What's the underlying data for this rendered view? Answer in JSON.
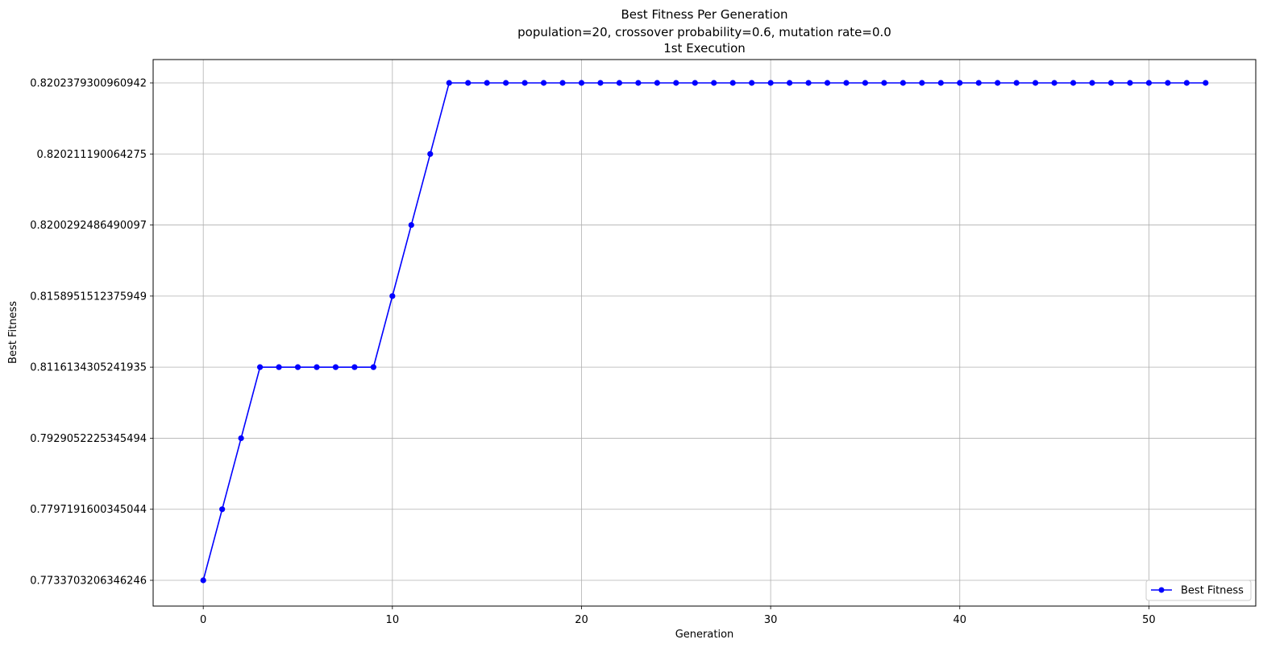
{
  "chart_data": {
    "type": "line",
    "title": "Best Fitness Per Generation",
    "subtitle": "population=20, crossover probability=0.6, mutation rate=0.0",
    "subtitle2": "1st Execution",
    "xlabel": "Generation",
    "ylabel": "Best Fitness",
    "x_ticks": [
      "0",
      "10",
      "20",
      "30",
      "40",
      "50"
    ],
    "xlim": [
      -2.65,
      55.65
    ],
    "y_categories": [
      "0.7733703206346246",
      "0.7797191600345044",
      "0.7929052225345494",
      "0.8116134305241935",
      "0.8158951512375949",
      "0.8200292486490097",
      "0.820211190064275",
      "0.8202379300960942"
    ],
    "grid": true,
    "legend_position": "bottom-right",
    "series": [
      {
        "name": "Best Fitness",
        "color": "#0000ff",
        "marker": "circle",
        "x": [
          0,
          1,
          2,
          3,
          4,
          5,
          6,
          7,
          8,
          9,
          10,
          11,
          12,
          13,
          14,
          15,
          16,
          17,
          18,
          19,
          20,
          21,
          22,
          23,
          24,
          25,
          26,
          27,
          28,
          29,
          30,
          31,
          32,
          33,
          34,
          35,
          36,
          37,
          38,
          39,
          40,
          41,
          42,
          43,
          44,
          45,
          46,
          47,
          48,
          49,
          50,
          51,
          52,
          53
        ],
        "y_level": [
          0,
          1,
          2,
          3,
          3,
          3,
          3,
          3,
          3,
          3,
          4,
          5,
          6,
          7,
          7,
          7,
          7,
          7,
          7,
          7,
          7,
          7,
          7,
          7,
          7,
          7,
          7,
          7,
          7,
          7,
          7,
          7,
          7,
          7,
          7,
          7,
          7,
          7,
          7,
          7,
          7,
          7,
          7,
          7,
          7,
          7,
          7,
          7,
          7,
          7,
          7,
          7,
          7,
          7
        ]
      }
    ]
  }
}
